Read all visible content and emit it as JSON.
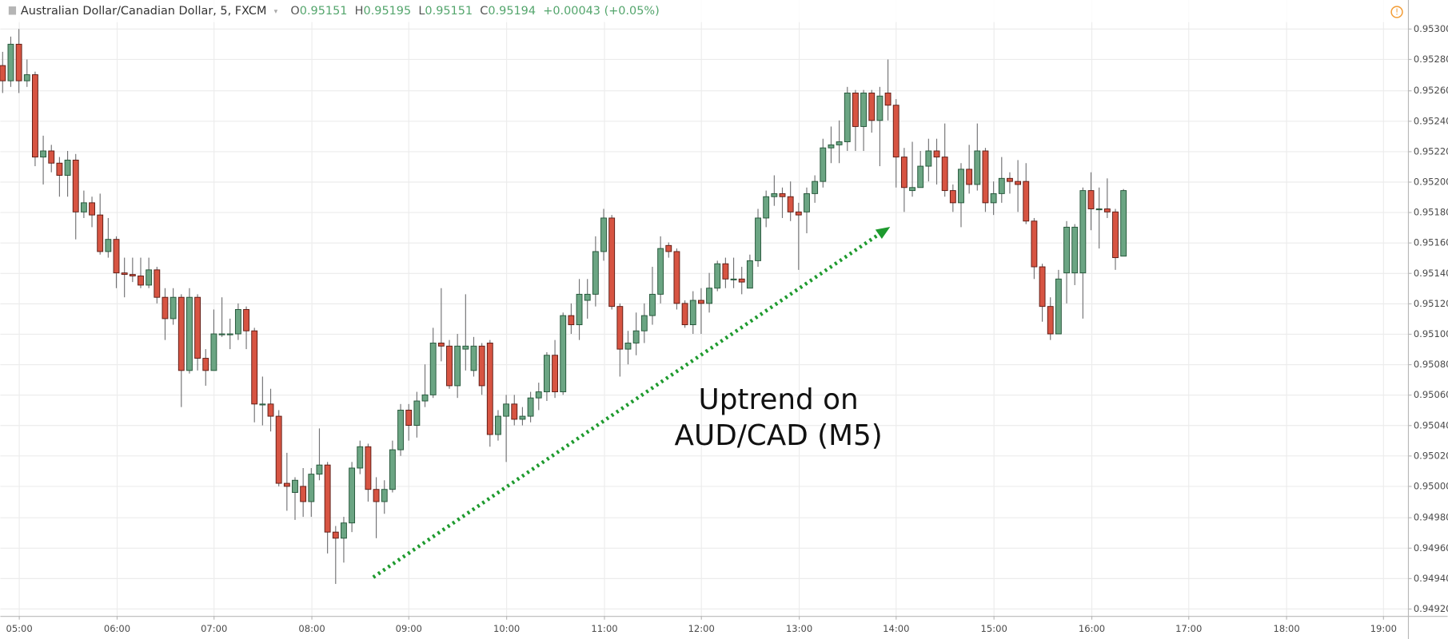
{
  "chart_data": {
    "type": "candlestick",
    "header": {
      "title": "Australian Dollar/Canadian Dollar, 5, FXCM",
      "ohlc": [
        {
          "label": "O",
          "value": "0.95151"
        },
        {
          "label": "H",
          "value": "0.95195"
        },
        {
          "label": "L",
          "value": "0.95151"
        },
        {
          "label": "C",
          "value": "0.95194"
        }
      ],
      "change": "+0.00043 (+0.05%)"
    },
    "annotation": [
      "Uptrend on",
      "AUD/CAD (M5)"
    ],
    "up_color": "#6ba583",
    "up_border": "#225437",
    "down_color": "#d75442",
    "down_border": "#5b1a13",
    "wick_color": "#737375",
    "grid": true,
    "xlim": [
      288.6,
      1155.1
    ],
    "xticks": [
      {
        "value": 300,
        "label": "05:00"
      },
      {
        "value": 360,
        "label": "06:00"
      },
      {
        "value": 420,
        "label": "07:00"
      },
      {
        "value": 480,
        "label": "08:00"
      },
      {
        "value": 540,
        "label": "09:00"
      },
      {
        "value": 600,
        "label": "10:00"
      },
      {
        "value": 660,
        "label": "11:00"
      },
      {
        "value": 720,
        "label": "12:00"
      },
      {
        "value": 780,
        "label": "13:00"
      },
      {
        "value": 840,
        "label": "14:00"
      },
      {
        "value": 900,
        "label": "15:00"
      },
      {
        "value": 960,
        "label": "16:00"
      },
      {
        "value": 1020,
        "label": "17:00"
      },
      {
        "value": 1080,
        "label": "18:00"
      },
      {
        "value": 1140,
        "label": "19:00"
      }
    ],
    "ylim": [
      0.94915,
      0.95319
    ],
    "yticks": [
      {
        "value": 0.9492,
        "label": "0.94920"
      },
      {
        "value": 0.9494,
        "label": "0.94940"
      },
      {
        "value": 0.9496,
        "label": "0.94960"
      },
      {
        "value": 0.9498,
        "label": "0.94980"
      },
      {
        "value": 0.95,
        "label": "0.95000"
      },
      {
        "value": 0.9502,
        "label": "0.95020"
      },
      {
        "value": 0.9504,
        "label": "0.95040"
      },
      {
        "value": 0.9506,
        "label": "0.95060"
      },
      {
        "value": 0.9508,
        "label": "0.95080"
      },
      {
        "value": 0.951,
        "label": "0.95100"
      },
      {
        "value": 0.9512,
        "label": "0.95120"
      },
      {
        "value": 0.9514,
        "label": "0.95140"
      },
      {
        "value": 0.9516,
        "label": "0.95160"
      },
      {
        "value": 0.9518,
        "label": "0.95180"
      },
      {
        "value": 0.952,
        "label": "0.95200"
      },
      {
        "value": 0.9522,
        "label": "0.95220"
      },
      {
        "value": 0.9524,
        "label": "0.95240"
      },
      {
        "value": 0.9526,
        "label": "0.95260"
      },
      {
        "value": 0.9528,
        "label": "0.95280"
      },
      {
        "value": 0.953,
        "label": "0.95300"
      }
    ],
    "x": [
      290,
      295,
      300,
      305,
      310,
      315,
      320,
      325,
      330,
      335,
      340,
      345,
      350,
      355,
      360,
      365,
      370,
      375,
      380,
      385,
      390,
      395,
      400,
      405,
      410,
      415,
      420,
      425,
      430,
      435,
      440,
      445,
      450,
      455,
      460,
      465,
      470,
      475,
      480,
      485,
      490,
      495,
      500,
      505,
      510,
      515,
      520,
      525,
      530,
      535,
      540,
      545,
      550,
      555,
      560,
      565,
      570,
      575,
      580,
      585,
      590,
      595,
      600,
      605,
      610,
      615,
      620,
      625,
      630,
      635,
      640,
      645,
      650,
      655,
      660,
      665,
      670,
      675,
      680,
      685,
      690,
      695,
      700,
      705,
      710,
      715,
      720,
      725,
      730,
      735,
      740,
      745,
      750,
      755,
      760,
      765,
      770,
      775,
      780,
      785,
      790,
      795,
      800,
      805,
      810,
      815,
      820,
      825,
      830,
      835,
      840,
      845,
      850,
      855,
      860,
      865,
      870,
      875,
      880,
      885,
      890,
      895,
      900,
      905,
      910,
      915,
      920,
      925,
      930,
      935,
      940,
      945,
      950,
      955,
      960,
      965,
      970,
      975,
      980
    ],
    "open": [
      0.95276,
      0.95266,
      0.9529,
      0.95266,
      0.9527,
      0.95216,
      0.9522,
      0.95212,
      0.95204,
      0.95214,
      0.9518,
      0.95186,
      0.95178,
      0.95154,
      0.95162,
      0.9514,
      0.95139,
      0.95138,
      0.95132,
      0.95142,
      0.95124,
      0.9511,
      0.95124,
      0.95076,
      0.95124,
      0.95084,
      0.95076,
      0.951,
      0.951,
      0.951,
      0.95116,
      0.95102,
      0.95054,
      0.95054,
      0.95046,
      0.95002,
      0.94996,
      0.95,
      0.9499,
      0.95008,
      0.95014,
      0.9497,
      0.94966,
      0.94976,
      0.95012,
      0.95026,
      0.94998,
      0.9499,
      0.94998,
      0.95024,
      0.9505,
      0.9504,
      0.95056,
      0.9506,
      0.95094,
      0.95092,
      0.95066,
      0.9509,
      0.95076,
      0.95092,
      0.95094,
      0.95034,
      0.95046,
      0.95054,
      0.95044,
      0.95046,
      0.95058,
      0.95062,
      0.95086,
      0.95062,
      0.95112,
      0.95106,
      0.95122,
      0.95126,
      0.95154,
      0.95176,
      0.95118,
      0.9509,
      0.95094,
      0.95102,
      0.95112,
      0.95126,
      0.95158,
      0.95154,
      0.9512,
      0.95106,
      0.95122,
      0.9512,
      0.9513,
      0.95146,
      0.95136,
      0.95136,
      0.9513,
      0.95148,
      0.95176,
      0.9519,
      0.95192,
      0.9519,
      0.9518,
      0.9518,
      0.95192,
      0.952,
      0.95222,
      0.95224,
      0.95226,
      0.95258,
      0.95236,
      0.95258,
      0.9524,
      0.95258,
      0.9525,
      0.95216,
      0.95194,
      0.95196,
      0.9521,
      0.9522,
      0.95216,
      0.95194,
      0.95186,
      0.95208,
      0.95198,
      0.9522,
      0.95186,
      0.95192,
      0.95202,
      0.952,
      0.952,
      0.95174,
      0.95144,
      0.95118,
      0.951,
      0.9514,
      0.9514,
      0.9514,
      0.95194,
      0.95182,
      0.95182,
      0.9518,
      0.95151
    ],
    "high": [
      0.95285,
      0.95295,
      0.953,
      0.9528,
      0.95272,
      0.9523,
      0.95224,
      0.95216,
      0.9522,
      0.95218,
      0.95194,
      0.9519,
      0.95192,
      0.95176,
      0.95164,
      0.9515,
      0.9515,
      0.9515,
      0.9515,
      0.95144,
      0.9513,
      0.9513,
      0.95126,
      0.9513,
      0.95126,
      0.9509,
      0.95116,
      0.95124,
      0.9511,
      0.9512,
      0.95118,
      0.95104,
      0.95072,
      0.95064,
      0.9505,
      0.95022,
      0.95006,
      0.95012,
      0.95012,
      0.95038,
      0.95016,
      0.94974,
      0.9498,
      0.95016,
      0.9503,
      0.95028,
      0.95006,
      0.95004,
      0.9503,
      0.95054,
      0.95054,
      0.95062,
      0.9508,
      0.95104,
      0.9513,
      0.95096,
      0.951,
      0.95126,
      0.95098,
      0.95094,
      0.95096,
      0.9505,
      0.9506,
      0.9506,
      0.95052,
      0.95062,
      0.95068,
      0.95088,
      0.95096,
      0.95114,
      0.9512,
      0.95136,
      0.95136,
      0.95164,
      0.95182,
      0.95178,
      0.9512,
      0.95102,
      0.95114,
      0.9512,
      0.95144,
      0.95164,
      0.9516,
      0.95156,
      0.95122,
      0.95128,
      0.9513,
      0.9514,
      0.95148,
      0.9515,
      0.9515,
      0.95144,
      0.95152,
      0.95182,
      0.95194,
      0.95204,
      0.95196,
      0.952,
      0.95186,
      0.95196,
      0.95204,
      0.95228,
      0.95236,
      0.9524,
      0.95262,
      0.9526,
      0.9526,
      0.9526,
      0.95262,
      0.9528,
      0.95254,
      0.95222,
      0.95226,
      0.9522,
      0.95228,
      0.95228,
      0.95238,
      0.95198,
      0.95212,
      0.95224,
      0.95238,
      0.95222,
      0.952,
      0.95216,
      0.95206,
      0.95214,
      0.95212,
      0.95176,
      0.95146,
      0.95124,
      0.95142,
      0.95174,
      0.95172,
      0.95196,
      0.95206,
      0.95196,
      0.95202,
      0.95182,
      0.95195
    ],
    "low": [
      0.95258,
      0.95262,
      0.95258,
      0.95262,
      0.9521,
      0.95198,
      0.95206,
      0.9519,
      0.9519,
      0.95162,
      0.95176,
      0.9517,
      0.95152,
      0.9515,
      0.9513,
      0.95124,
      0.95134,
      0.9513,
      0.9513,
      0.9512,
      0.95096,
      0.95106,
      0.95052,
      0.95074,
      0.95076,
      0.95066,
      0.95076,
      0.95098,
      0.9509,
      0.95096,
      0.9509,
      0.95042,
      0.9504,
      0.95036,
      0.95,
      0.94984,
      0.94978,
      0.9498,
      0.9498,
      0.95004,
      0.94956,
      0.94936,
      0.9495,
      0.9497,
      0.95008,
      0.9499,
      0.94966,
      0.94982,
      0.94996,
      0.9502,
      0.9503,
      0.95032,
      0.95052,
      0.95058,
      0.95082,
      0.95064,
      0.95058,
      0.95076,
      0.95072,
      0.9506,
      0.95026,
      0.9503,
      0.95016,
      0.9504,
      0.9504,
      0.95042,
      0.9505,
      0.95056,
      0.95058,
      0.9506,
      0.951,
      0.95096,
      0.9511,
      0.95118,
      0.95148,
      0.95116,
      0.95072,
      0.9508,
      0.95086,
      0.95094,
      0.95106,
      0.9512,
      0.9515,
      0.95116,
      0.95104,
      0.951,
      0.951,
      0.95114,
      0.95128,
      0.9513,
      0.9513,
      0.95126,
      0.9513,
      0.95144,
      0.9517,
      0.95184,
      0.95176,
      0.95174,
      0.95142,
      0.95166,
      0.95186,
      0.95196,
      0.95212,
      0.95212,
      0.9522,
      0.9522,
      0.9522,
      0.95232,
      0.9521,
      0.9524,
      0.95196,
      0.9518,
      0.9519,
      0.95196,
      0.952,
      0.95198,
      0.9519,
      0.9518,
      0.9517,
      0.95192,
      0.95194,
      0.9518,
      0.95178,
      0.95186,
      0.95192,
      0.9518,
      0.95172,
      0.95136,
      0.95108,
      0.95096,
      0.951,
      0.9512,
      0.95132,
      0.9511,
      0.95168,
      0.95156,
      0.95176,
      0.95142,
      0.95151
    ],
    "close": [
      0.95266,
      0.9529,
      0.95266,
      0.9527,
      0.95216,
      0.9522,
      0.95212,
      0.95204,
      0.95214,
      0.9518,
      0.95186,
      0.95178,
      0.95154,
      0.95162,
      0.9514,
      0.95139,
      0.95138,
      0.95132,
      0.95142,
      0.95124,
      0.9511,
      0.95124,
      0.95076,
      0.95124,
      0.95084,
      0.95076,
      0.951,
      0.951,
      0.951,
      0.95116,
      0.95102,
      0.95054,
      0.95054,
      0.95046,
      0.95002,
      0.95,
      0.95004,
      0.9499,
      0.95008,
      0.95014,
      0.9497,
      0.94966,
      0.94976,
      0.95012,
      0.95026,
      0.94998,
      0.9499,
      0.94998,
      0.95024,
      0.9505,
      0.9504,
      0.95056,
      0.9506,
      0.95094,
      0.95092,
      0.95066,
      0.95092,
      0.95092,
      0.95092,
      0.95066,
      0.95034,
      0.95046,
      0.95054,
      0.95044,
      0.95046,
      0.95058,
      0.95062,
      0.95086,
      0.95062,
      0.95112,
      0.95106,
      0.95126,
      0.95126,
      0.95154,
      0.95176,
      0.95118,
      0.9509,
      0.95094,
      0.95102,
      0.95112,
      0.95126,
      0.95156,
      0.95154,
      0.9512,
      0.95106,
      0.95122,
      0.9512,
      0.9513,
      0.95146,
      0.95136,
      0.95136,
      0.95134,
      0.95148,
      0.95176,
      0.9519,
      0.95192,
      0.9519,
      0.9518,
      0.95178,
      0.95192,
      0.952,
      0.95222,
      0.95224,
      0.95226,
      0.95258,
      0.95236,
      0.95258,
      0.9524,
      0.95256,
      0.9525,
      0.95216,
      0.95196,
      0.95196,
      0.9521,
      0.9522,
      0.95216,
      0.95194,
      0.95186,
      0.95208,
      0.95198,
      0.9522,
      0.95186,
      0.95192,
      0.95202,
      0.952,
      0.95198,
      0.95174,
      0.95144,
      0.95118,
      0.951,
      0.95136,
      0.9517,
      0.9517,
      0.95194,
      0.95182,
      0.95182,
      0.9518,
      0.9515,
      0.95194
    ]
  }
}
